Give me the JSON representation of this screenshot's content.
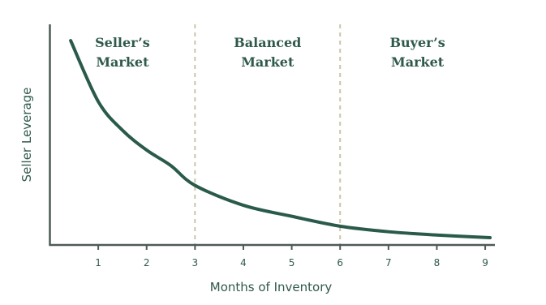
{
  "chart_data": {
    "type": "line",
    "x_label": "Months of Inventory",
    "y_label": "Seller Leverage",
    "xlim": [
      0,
      9.2
    ],
    "ylim": [
      0,
      100
    ],
    "xticks": [
      1,
      2,
      3,
      4,
      5,
      6,
      7,
      8,
      9
    ],
    "x": [
      0.43,
      1,
      1.5,
      2,
      2.5,
      3,
      4,
      5,
      6,
      7,
      8,
      9.1
    ],
    "series": [
      {
        "color": "#2a5a4b",
        "values": [
          92.6,
          65,
          52,
          43,
          36,
          27,
          18,
          13,
          8.5,
          6,
          4.5,
          3.3
        ]
      }
    ],
    "dividers": [
      3,
      6
    ],
    "divider_color": "#c9c6a8",
    "regions": [
      {
        "lines": [
          "Seller’s",
          "Market"
        ],
        "from": 0,
        "to": 3
      },
      {
        "lines": [
          "Balanced",
          "Market"
        ],
        "from": 3,
        "to": 6
      },
      {
        "lines": [
          "Buyer’s",
          "Market"
        ],
        "from": 6,
        "to": 9.2
      }
    ]
  }
}
